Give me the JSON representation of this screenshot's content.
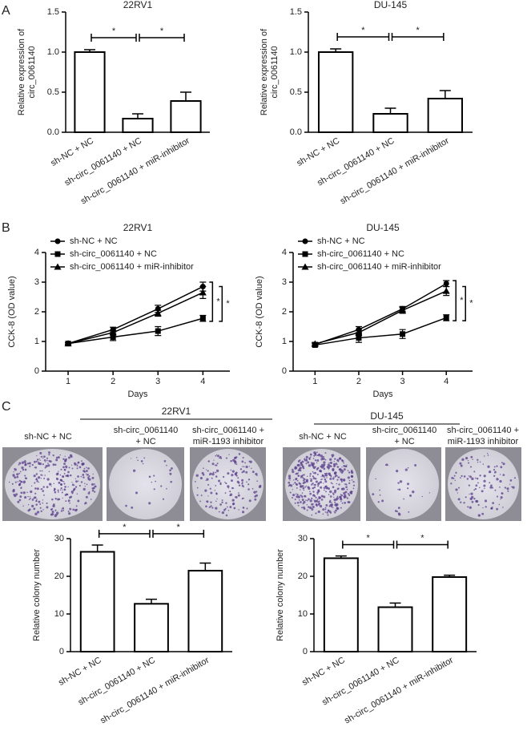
{
  "panel_labels": [
    "A",
    "B",
    "C"
  ],
  "colony_images": [
    {
      "title": "22RV1",
      "labels": [
        [
          "sh-NC + NC"
        ],
        [
          "sh-circ_0061140",
          "+ NC"
        ],
        [
          "sh-circ_0061140 +",
          "miR-1193 inhibitor"
        ]
      ]
    },
    {
      "title": "DU-145",
      "labels": [
        [
          "sh-NC + NC"
        ],
        [
          "sh-circ_0061140",
          "+ NC"
        ],
        [
          "sh-circ_0061140 +",
          "miR-1193 inhibitor"
        ]
      ]
    }
  ],
  "chart_data": [
    {
      "type": "bar",
      "title": "22RV1",
      "ylabel": [
        "Relative expression of",
        "circ_0061140"
      ],
      "categories": [
        "sh-NC + NC",
        "sh-circ_0061140 + NC",
        "sh-circ_0061140 + miR-inhibitor"
      ],
      "values": [
        1.0,
        0.17,
        0.39
      ],
      "errors": [
        0.03,
        0.06,
        0.11
      ],
      "ylim": [
        0,
        1.5
      ],
      "yticks": [
        {
          "value": 0,
          "label": "0.0"
        },
        0.5,
        {
          "value": 1,
          "label": "1.0"
        },
        1.5
      ],
      "annotations": [
        "*",
        "*"
      ],
      "color": "#ffffff"
    },
    {
      "type": "bar",
      "title": "DU-145",
      "ylabel": [
        "Relative expression of",
        "circ_0061140"
      ],
      "categories": [
        "sh-NC + NC",
        "sh-circ_0061140 + NC",
        "sh-circ_0061140 + miR-inhibitor"
      ],
      "values": [
        1.0,
        0.23,
        0.42
      ],
      "errors": [
        0.04,
        0.07,
        0.1
      ],
      "ylim": [
        0,
        1.5
      ],
      "yticks": [
        {
          "value": 0,
          "label": "0.0"
        },
        0.5,
        {
          "value": 1,
          "label": "1.0"
        },
        1.5
      ],
      "annotations": [
        "*",
        "*"
      ],
      "color": "#ffffff"
    },
    {
      "type": "line",
      "title": "22RV1",
      "xlabel": "Days",
      "ylabel": "CCK-8 (OD value)",
      "x": [
        1,
        2,
        3,
        4
      ],
      "xlim": [
        0.5,
        4.6
      ],
      "xticks": [
        1,
        2,
        3,
        4
      ],
      "ylim": [
        0,
        4
      ],
      "yticks": [
        0,
        1,
        2,
        3,
        4
      ],
      "series": [
        {
          "name": "sh-NC + NC",
          "marker": "circle",
          "color": "#000000",
          "values": [
            0.93,
            1.4,
            2.1,
            2.85
          ],
          "errors": [
            0.03,
            0.08,
            0.12,
            0.15
          ]
        },
        {
          "name": "sh-circ_0061140 + NC",
          "marker": "square",
          "color": "#000000",
          "values": [
            0.93,
            1.15,
            1.35,
            1.78
          ],
          "errors": [
            0.03,
            0.12,
            0.15,
            0.1
          ]
        },
        {
          "name": "sh-circ_0061140 + miR-inhibitor",
          "marker": "triangle",
          "color": "#000000",
          "values": [
            0.93,
            1.3,
            1.95,
            2.65
          ],
          "errors": [
            0.03,
            0.08,
            0.1,
            0.2
          ]
        }
      ],
      "annotations": [
        "*",
        "*"
      ]
    },
    {
      "type": "line",
      "title": "DU-145",
      "xlabel": "Days",
      "ylabel": "CCK-8 (OD value)",
      "x": [
        1,
        2,
        3,
        4
      ],
      "xlim": [
        0.5,
        4.6
      ],
      "xticks": [
        1,
        2,
        3,
        4
      ],
      "ylim": [
        0,
        4
      ],
      "yticks": [
        0,
        1,
        2,
        3,
        4
      ],
      "series": [
        {
          "name": "sh-NC + NC",
          "marker": "circle",
          "color": "#000000",
          "values": [
            0.9,
            1.4,
            2.1,
            2.95
          ],
          "errors": [
            0.05,
            0.1,
            0.08,
            0.1
          ]
        },
        {
          "name": "sh-circ_0061140 + NC",
          "marker": "square",
          "color": "#000000",
          "values": [
            0.88,
            1.12,
            1.25,
            1.8
          ],
          "errors": [
            0.05,
            0.15,
            0.15,
            0.1
          ]
        },
        {
          "name": "sh-circ_0061140 + miR-inhibitor",
          "marker": "triangle",
          "color": "#000000",
          "values": [
            0.92,
            1.3,
            2.05,
            2.7
          ],
          "errors": [
            0.05,
            0.1,
            0.1,
            0.15
          ]
        }
      ],
      "annotations": [
        "*",
        "*"
      ]
    },
    {
      "type": "bar",
      "ylabel": "Relative colony number",
      "categories": [
        "sh-NC + NC",
        "sh-circ_0061140 + NC",
        "sh-circ_0061140 + miR-inhibitor"
      ],
      "values": [
        26.5,
        12.7,
        21.5
      ],
      "errors": [
        1.8,
        1.2,
        2.0
      ],
      "ylim": [
        0,
        30
      ],
      "yticks": [
        0,
        10,
        20,
        30
      ],
      "annotations": [
        "*",
        "*"
      ],
      "color": "#ffffff"
    },
    {
      "type": "bar",
      "ylabel": "Relative colony number",
      "categories": [
        "sh-NC + NC",
        "sh-circ_0061140 + NC",
        "sh-circ_0061140 + miR-inhibitor"
      ],
      "values": [
        24.8,
        11.8,
        19.8
      ],
      "errors": [
        0.6,
        1.1,
        0.5
      ],
      "ylim": [
        0,
        30
      ],
      "yticks": [
        0,
        10,
        20,
        30
      ],
      "annotations": [
        "*",
        "*"
      ],
      "color": "#ffffff"
    }
  ]
}
